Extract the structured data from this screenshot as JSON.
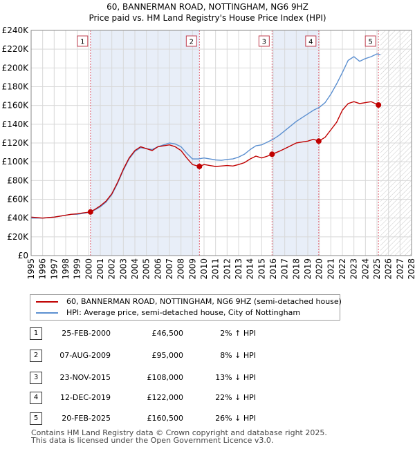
{
  "title_line1": "60, BANNERMAN ROAD, NOTTINGHAM, NG6 9HZ",
  "title_line2": "Price paid vs. HM Land Registry's House Price Index (HPI)",
  "legend": {
    "series1": "60, BANNERMAN ROAD, NOTTINGHAM, NG6 9HZ (semi-detached house)",
    "series2": "HPI: Average price, semi-detached house, City of Nottingham"
  },
  "colors": {
    "property": "#c00000",
    "hpi": "#5b8fd0",
    "shade": "#e8eef8",
    "marker_line": "#e06070",
    "grid": "#d8d8d8"
  },
  "sales": [
    {
      "num": "1",
      "date": "25-FEB-2000",
      "price": "£46,500",
      "hpi": "2% ↑ HPI"
    },
    {
      "num": "2",
      "date": "07-AUG-2009",
      "price": "£95,000",
      "hpi": "8% ↓ HPI"
    },
    {
      "num": "3",
      "date": "23-NOV-2015",
      "price": "£108,000",
      "hpi": "13% ↓ HPI"
    },
    {
      "num": "4",
      "date": "12-DEC-2019",
      "price": "£122,000",
      "hpi": "22% ↓ HPI"
    },
    {
      "num": "5",
      "date": "20-FEB-2025",
      "price": "£160,500",
      "hpi": "26% ↓ HPI"
    }
  ],
  "footer_line1": "Contains HM Land Registry data © Crown copyright and database right 2025.",
  "footer_line2": "This data is licensed under the Open Government Licence v3.0.",
  "chart_data": {
    "type": "line",
    "title": "Price paid vs. HM Land Registry's House Price Index (HPI)",
    "xlim": [
      1995,
      2028
    ],
    "ylim": [
      0,
      240000
    ],
    "x_ticks": [
      1995,
      1996,
      1997,
      1998,
      1999,
      2000,
      2001,
      2002,
      2003,
      2004,
      2005,
      2006,
      2007,
      2008,
      2009,
      2010,
      2011,
      2012,
      2013,
      2014,
      2015,
      2016,
      2017,
      2018,
      2019,
      2020,
      2021,
      2022,
      2023,
      2024,
      2025,
      2026,
      2027,
      2028
    ],
    "y_ticks": [
      0,
      20000,
      40000,
      60000,
      80000,
      100000,
      120000,
      140000,
      160000,
      180000,
      200000,
      220000,
      240000
    ],
    "y_tick_labels": [
      "£0",
      "£20K",
      "£40K",
      "£60K",
      "£80K",
      "£100K",
      "£120K",
      "£140K",
      "£160K",
      "£180K",
      "£200K",
      "£220K",
      "£240K"
    ],
    "grid": true,
    "series": [
      {
        "name": "60, BANNERMAN ROAD, NOTTINGHAM, NG6 9HZ (semi-detached house)",
        "x": [
          1995,
          1995.5,
          1996,
          1996.5,
          1997,
          1997.5,
          1998,
          1998.5,
          1999,
          1999.5,
          2000.15,
          2000.5,
          2001,
          2001.5,
          2002,
          2002.5,
          2003,
          2003.5,
          2004,
          2004.5,
          2005,
          2005.5,
          2006,
          2006.5,
          2007,
          2007.5,
          2008,
          2008.5,
          2009,
          2009.6,
          2010,
          2010.5,
          2011,
          2011.5,
          2012,
          2012.5,
          2013,
          2013.5,
          2014,
          2014.5,
          2015,
          2015.5,
          2015.9,
          2016.5,
          2017,
          2017.5,
          2018,
          2018.5,
          2019,
          2019.5,
          2019.95,
          2020.5,
          2021,
          2021.5,
          2022,
          2022.5,
          2023,
          2023.5,
          2024,
          2024.5,
          2025.13
        ],
        "values": [
          41000,
          40500,
          40000,
          40500,
          41000,
          42000,
          43000,
          44000,
          44500,
          45500,
          46500,
          49000,
          53000,
          58000,
          66000,
          78000,
          92000,
          104000,
          112000,
          116000,
          114000,
          112000,
          116000,
          117000,
          118000,
          116000,
          112000,
          104000,
          97000,
          95000,
          97000,
          96000,
          95000,
          95500,
          96000,
          95500,
          97000,
          99000,
          103000,
          106000,
          104000,
          106000,
          108000,
          111000,
          114000,
          117000,
          120000,
          121000,
          122000,
          124000,
          122000,
          126000,
          134000,
          142000,
          155000,
          162000,
          164000,
          162000,
          163000,
          164000,
          160500
        ]
      },
      {
        "name": "HPI: Average price, semi-detached house, City of Nottingham",
        "x": [
          1995,
          1995.5,
          1996,
          1996.5,
          1997,
          1997.5,
          1998,
          1998.5,
          1999,
          1999.5,
          2000,
          2000.5,
          2001,
          2001.5,
          2002,
          2002.5,
          2003,
          2003.5,
          2004,
          2004.5,
          2005,
          2005.5,
          2006,
          2006.5,
          2007,
          2007.5,
          2008,
          2008.5,
          2009,
          2009.5,
          2010,
          2010.5,
          2011,
          2011.5,
          2012,
          2012.5,
          2013,
          2013.5,
          2014,
          2014.5,
          2015,
          2015.5,
          2016,
          2016.5,
          2017,
          2017.5,
          2018,
          2018.5,
          2019,
          2019.5,
          2020,
          2020.5,
          2021,
          2021.5,
          2022,
          2022.5,
          2023,
          2023.5,
          2024,
          2024.5,
          2025,
          2025.3
        ],
        "values": [
          40000,
          40000,
          40000,
          40500,
          41000,
          42000,
          43000,
          44000,
          44000,
          45000,
          46000,
          48500,
          52000,
          57000,
          65000,
          77000,
          91000,
          103000,
          111000,
          115000,
          114000,
          113000,
          116000,
          118000,
          120000,
          119000,
          116000,
          109000,
          103000,
          103000,
          104000,
          103000,
          102000,
          101500,
          102500,
          103000,
          105000,
          108000,
          113000,
          117000,
          118000,
          121000,
          124000,
          128000,
          133000,
          138000,
          143000,
          147000,
          151000,
          155000,
          158000,
          163000,
          172000,
          183000,
          195000,
          208000,
          212000,
          207000,
          210000,
          212000,
          215000,
          214000
        ]
      }
    ],
    "sale_points": {
      "x": [
        2000.15,
        2009.6,
        2015.9,
        2019.95,
        2025.13
      ],
      "values": [
        46500,
        95000,
        108000,
        122000,
        160500
      ],
      "labels": [
        "1",
        "2",
        "3",
        "4",
        "5"
      ]
    },
    "shaded_spans": [
      [
        2000.15,
        2009.6
      ],
      [
        2015.9,
        2019.95
      ]
    ],
    "hatched_span": [
      2025.3,
      2028
    ]
  }
}
